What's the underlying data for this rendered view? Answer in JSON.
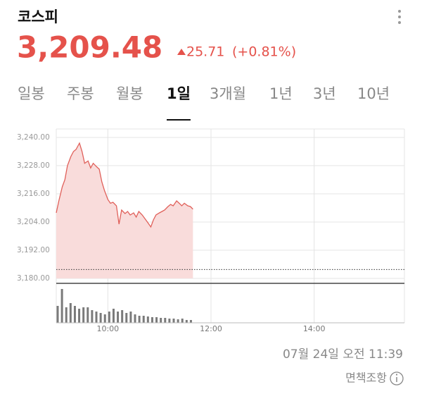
{
  "header": {
    "title": "코스피",
    "price": "3,209.48",
    "change": "25.71",
    "change_pct": "(+0.81%)"
  },
  "tabs": {
    "items": [
      "일봉",
      "주봉",
      "월봉",
      "1일",
      "3개월",
      "1년",
      "3년",
      "10년"
    ],
    "active": 3
  },
  "chart_data": [
    {
      "type": "area",
      "x": [
        540,
        543,
        547,
        550,
        553,
        557,
        560,
        563,
        567,
        570,
        573,
        577,
        580,
        583,
        587,
        590,
        593,
        596,
        600,
        603,
        606,
        610,
        613,
        616,
        620,
        623,
        626,
        630,
        633,
        636,
        640,
        643,
        646,
        650,
        653,
        656,
        660,
        663,
        666,
        670,
        673,
        676,
        680,
        683,
        686,
        689,
        693,
        696,
        699
      ],
      "values": [
        3207.9,
        3213.0,
        3219.0,
        3222.0,
        3228.0,
        3231.9,
        3234.0,
        3234.9,
        3237.6,
        3234.0,
        3229.0,
        3230.0,
        3227.0,
        3229.0,
        3227.5,
        3226.5,
        3221.1,
        3217.5,
        3213.6,
        3212.0,
        3212.4,
        3210.9,
        3203.1,
        3209.1,
        3207.6,
        3208.5,
        3207.0,
        3207.9,
        3206.1,
        3208.5,
        3207.0,
        3205.5,
        3204.0,
        3201.9,
        3204.9,
        3207.0,
        3207.9,
        3208.5,
        3209.1,
        3210.6,
        3211.5,
        3210.9,
        3213.0,
        3212.0,
        3210.9,
        3212.0,
        3210.9,
        3210.6,
        3209.48
      ],
      "color": "#e0605a",
      "fill_color": "#f9dcdb",
      "xlim": [
        540,
        945
      ],
      "xticks": [
        {
          "value": 600,
          "label": "10:00"
        },
        {
          "value": 720,
          "label": "12:00"
        },
        {
          "value": 840,
          "label": "14:00"
        }
      ],
      "ylim": [
        3180,
        3240
      ],
      "yticks": [
        {
          "value": 3180,
          "label": "3,180.00"
        },
        {
          "value": 3192,
          "label": "3,192.00"
        },
        {
          "value": 3204,
          "label": "3,204.00"
        },
        {
          "value": 3216,
          "label": "3,216.00"
        },
        {
          "value": 3228,
          "label": "3,228.00"
        },
        {
          "value": 3240,
          "label": "3,240.00"
        }
      ],
      "prev_close": 3183.77,
      "grid": true
    },
    {
      "type": "bar",
      "x": [
        540,
        545,
        550,
        555,
        560,
        565,
        570,
        575,
        580,
        585,
        590,
        595,
        600,
        605,
        610,
        615,
        620,
        625,
        630,
        635,
        640,
        645,
        650,
        655,
        660,
        665,
        670,
        675,
        680,
        685,
        690,
        695
      ],
      "values": [
        24,
        48,
        22,
        28,
        24,
        20,
        22,
        22,
        18,
        16,
        14,
        12,
        16,
        20,
        16,
        18,
        14,
        16,
        12,
        10,
        10,
        9,
        8,
        8,
        7,
        7,
        6,
        6,
        5,
        6,
        4,
        4
      ],
      "color": "#7a7a7a",
      "xlim": [
        540,
        945
      ],
      "ylim": [
        0,
        55
      ]
    }
  ],
  "footer": {
    "timestamp": "07월 24일 오전 11:39",
    "disclaimer": "면책조항"
  }
}
